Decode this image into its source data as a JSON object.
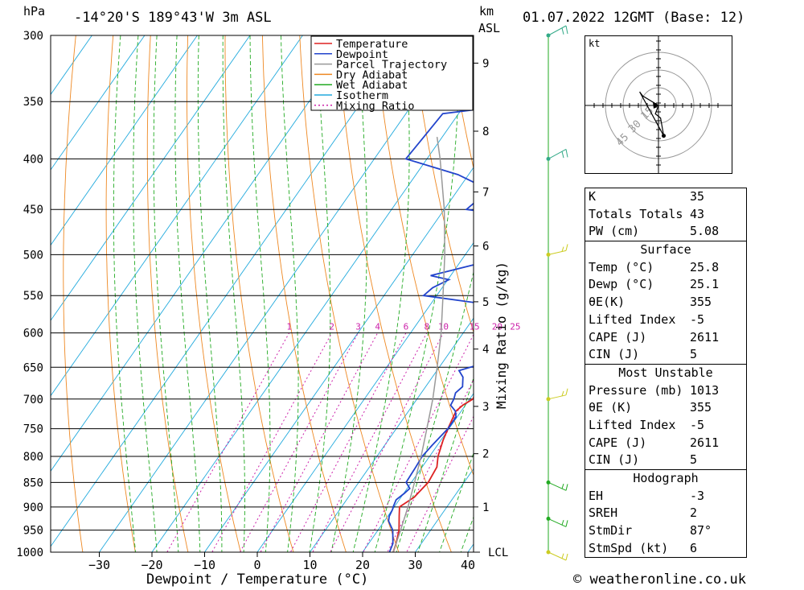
{
  "header": {
    "station": "-14°20'S  189°43'W  3m  ASL",
    "datetime": "01.07.2022  12GMT  (Base: 12)",
    "pressure_unit": "hPa",
    "height_unit_km": "km",
    "height_unit_asl": "ASL"
  },
  "chart_data": {
    "type": "line",
    "subtype": "skew-T log-p sounding",
    "xlabel": "Dewpoint / Temperature (°C)",
    "ylabel": "hPa",
    "right_axis_label": "Mixing Ratio (g/kg)",
    "x_ticks": [
      -30,
      -20,
      -10,
      0,
      10,
      20,
      30,
      40
    ],
    "pressure_levels": [
      300,
      350,
      400,
      450,
      500,
      550,
      600,
      650,
      700,
      750,
      800,
      850,
      900,
      950,
      1000
    ],
    "km_ticks": [
      {
        "label": "1",
        "p": 900
      },
      {
        "label": "2",
        "p": 795
      },
      {
        "label": "3",
        "p": 712
      },
      {
        "label": "4",
        "p": 623
      },
      {
        "label": "5",
        "p": 558
      },
      {
        "label": "6",
        "p": 490
      },
      {
        "label": "7",
        "p": 432
      },
      {
        "label": "8",
        "p": 375
      },
      {
        "label": "9",
        "p": 320
      }
    ],
    "lcl_label": "LCL",
    "lcl_pressure": 1000,
    "mixing_ratio_labels": [
      "1",
      "2",
      "3",
      "4",
      "6",
      "8",
      "10",
      "15",
      "20",
      "25"
    ],
    "mixing_ratio_values": [
      1,
      2,
      3,
      4,
      6,
      8,
      10,
      15,
      20,
      25
    ],
    "legend": [
      {
        "name": "Temperature",
        "color": "#dd2222",
        "dash": ""
      },
      {
        "name": "Dewpoint",
        "color": "#2244cc",
        "dash": ""
      },
      {
        "name": "Parcel Trajectory",
        "color": "#999999",
        "dash": ""
      },
      {
        "name": "Dry Adiabat",
        "color": "#ee8822",
        "dash": ""
      },
      {
        "name": "Wet Adiabat",
        "color": "#22aa22",
        "dash": ""
      },
      {
        "name": "Isotherm",
        "color": "#22aadd",
        "dash": ""
      },
      {
        "name": "Mixing Ratio",
        "color": "#cc22aa",
        "dash": "2,3"
      }
    ],
    "series": [
      {
        "name": "Temperature",
        "color": "#dd2222",
        "points": [
          [
            1000,
            25.8
          ],
          [
            980,
            25.2
          ],
          [
            950,
            24.0
          ],
          [
            920,
            22.2
          ],
          [
            900,
            21.0
          ],
          [
            880,
            22.5
          ],
          [
            850,
            23.2
          ],
          [
            820,
            22.8
          ],
          [
            800,
            21.6
          ],
          [
            770,
            20.4
          ],
          [
            750,
            19.8
          ],
          [
            720,
            19.0
          ],
          [
            710,
            19.5
          ],
          [
            700,
            20.6
          ],
          [
            680,
            20.2
          ],
          [
            665,
            19.6
          ],
          [
            655,
            20.6
          ],
          [
            640,
            20.4
          ],
          [
            620,
            19.7
          ],
          [
            600,
            18.5
          ],
          [
            580,
            17.7
          ],
          [
            570,
            17.9
          ],
          [
            550,
            17.0
          ],
          [
            530,
            15.6
          ],
          [
            510,
            14.7
          ],
          [
            500,
            14.4
          ],
          [
            480,
            13.2
          ],
          [
            460,
            12.2
          ],
          [
            450,
            11.7
          ],
          [
            440,
            11.0
          ],
          [
            430,
            10.5
          ],
          [
            420,
            9.9
          ],
          [
            400,
            8.4
          ],
          [
            380,
            7.2
          ],
          [
            360,
            6.2
          ],
          [
            340,
            5.3
          ],
          [
            330,
            4.9
          ],
          [
            320,
            3.8
          ],
          [
            300,
            2.2
          ]
        ]
      },
      {
        "name": "Dewpoint",
        "color": "#2244cc",
        "points": [
          [
            1000,
            25.1
          ],
          [
            980,
            24.6
          ],
          [
            950,
            22.8
          ],
          [
            940,
            21.8
          ],
          [
            930,
            20.8
          ],
          [
            920,
            20.3
          ],
          [
            905,
            20.0
          ],
          [
            900,
            19.8
          ],
          [
            885,
            19.4
          ],
          [
            872,
            20.1
          ],
          [
            862,
            20.5
          ],
          [
            850,
            19.0
          ],
          [
            820,
            18.8
          ],
          [
            800,
            18.6
          ],
          [
            780,
            19.0
          ],
          [
            750,
            19.8
          ],
          [
            730,
            19.8
          ],
          [
            720,
            18.9
          ],
          [
            710,
            17.2
          ],
          [
            700,
            17.0
          ],
          [
            690,
            16.5
          ],
          [
            680,
            17.0
          ],
          [
            665,
            15.8
          ],
          [
            655,
            14.2
          ],
          [
            645,
            17.6
          ],
          [
            625,
            15.2
          ],
          [
            600,
            14.0
          ],
          [
            590,
            12.6
          ],
          [
            570,
            13.2
          ],
          [
            560,
            9.2
          ],
          [
            550,
            -2.5
          ],
          [
            540,
            -1.8
          ],
          [
            530,
            0.2
          ],
          [
            525,
            -3.8
          ],
          [
            510,
            4.0
          ],
          [
            500,
            4.5
          ],
          [
            490,
            5.0
          ],
          [
            480,
            4.6
          ],
          [
            465,
            3.0
          ],
          [
            455,
            1.8
          ],
          [
            450,
            -5.8
          ],
          [
            430,
            -4.0
          ],
          [
            415,
            -12.0
          ],
          [
            400,
            -24.0
          ],
          [
            380,
            -23.5
          ],
          [
            360,
            -23.0
          ],
          [
            350,
            -6.0
          ],
          [
            340,
            -12.0
          ],
          [
            325,
            -20.5
          ],
          [
            315,
            -17.0
          ],
          [
            308,
            -18.5
          ],
          [
            300,
            -18.0
          ]
        ]
      },
      {
        "name": "Parcel Trajectory",
        "color": "#999999",
        "points": [
          [
            1000,
            25.8
          ],
          [
            950,
            24.3
          ],
          [
            900,
            22.6
          ],
          [
            850,
            20.6
          ],
          [
            800,
            18.4
          ],
          [
            750,
            15.8
          ],
          [
            700,
            13.0
          ],
          [
            650,
            9.6
          ],
          [
            600,
            5.8
          ],
          [
            550,
            1.2
          ],
          [
            500,
            -3.9
          ],
          [
            450,
            -10.0
          ],
          [
            400,
            -17.5
          ],
          [
            380,
            -21.0
          ]
        ]
      }
    ],
    "wind_barbs": [
      {
        "p": 1000,
        "level": "sfc"
      },
      {
        "p": 925
      },
      {
        "p": 850
      },
      {
        "p": 700
      },
      {
        "p": 500
      },
      {
        "p": 400
      },
      {
        "p": 300
      }
    ],
    "hodograph": {
      "unit": "kt",
      "ring_labels": [
        "15",
        "30",
        "45"
      ],
      "trace": [
        [
          0,
          0
        ],
        [
          -0.3,
          -0.8
        ],
        [
          0.2,
          -1.2
        ],
        [
          0.5,
          -2.9
        ],
        [
          -1.8,
          1.3
        ],
        [
          -1.5,
          0.9
        ],
        [
          0,
          0
        ]
      ]
    }
  },
  "stats": {
    "indices": [
      {
        "label": "K",
        "value": "35"
      },
      {
        "label": "Totals Totals",
        "value": "43"
      },
      {
        "label": "PW (cm)",
        "value": "5.08"
      }
    ],
    "surface_title": "Surface",
    "surface": [
      {
        "label": "Temp (°C)",
        "value": "25.8"
      },
      {
        "label": "Dewp (°C)",
        "value": "25.1"
      },
      {
        "label": "θE(K)",
        "value": "355"
      },
      {
        "label": "Lifted Index",
        "value": "-5"
      },
      {
        "label": "CAPE (J)",
        "value": "2611"
      },
      {
        "label": "CIN (J)",
        "value": "5"
      }
    ],
    "unstable_title": "Most Unstable",
    "unstable": [
      {
        "label": "Pressure (mb)",
        "value": "1013"
      },
      {
        "label": "θE (K)",
        "value": "355"
      },
      {
        "label": "Lifted Index",
        "value": "-5"
      },
      {
        "label": "CAPE (J)",
        "value": "2611"
      },
      {
        "label": "CIN (J)",
        "value": "5"
      }
    ],
    "hodograph_title": "Hodograph",
    "hodograph": [
      {
        "label": "EH",
        "value": "-3"
      },
      {
        "label": "SREH",
        "value": "2"
      },
      {
        "label": "StmDir",
        "value": "87°"
      },
      {
        "label": "StmSpd (kt)",
        "value": "6"
      }
    ]
  },
  "credit": "© weatheronline.co.uk"
}
